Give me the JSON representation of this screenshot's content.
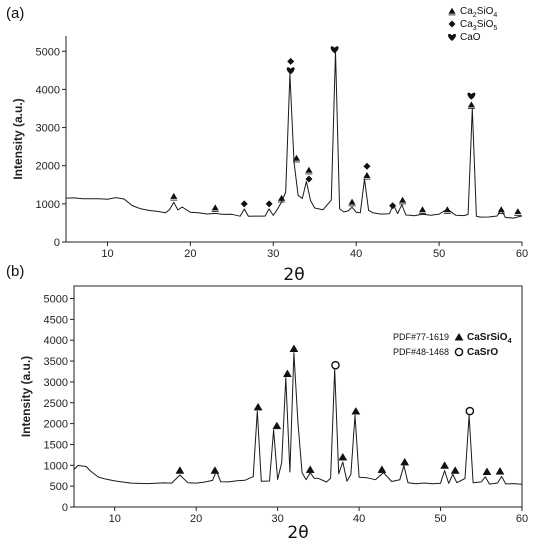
{
  "chart_data": [
    {
      "panel": "(a)",
      "type": "line",
      "xlabel": "2θ",
      "ylabel": "Intensity (a.u.)",
      "xlim": [
        5,
        60
      ],
      "ylim": [
        0,
        5400
      ],
      "xticks": [
        10,
        20,
        30,
        40,
        50,
        60
      ],
      "yticks": [
        0,
        1000,
        2000,
        3000,
        4000,
        5000
      ],
      "legend": {
        "placement": "top-right",
        "entries": [
          {
            "symbol": "triangle",
            "label": "Ca",
            "sub1": "2",
            "mid": "SiO",
            "sub2": "4"
          },
          {
            "symbol": "diamond",
            "label": "Ca",
            "sub1": "3",
            "mid": "SiO",
            "sub2": "5"
          },
          {
            "symbol": "heart",
            "label": "CaO",
            "sub1": "",
            "mid": "",
            "sub2": ""
          }
        ]
      },
      "series": [
        {
          "x": [
            5,
            6,
            7,
            8,
            9,
            10,
            11,
            12,
            13,
            14,
            15,
            16,
            17,
            17.5,
            18,
            18.5,
            19,
            20,
            21,
            22,
            23,
            24,
            25,
            26,
            26.5,
            27,
            28,
            29,
            29.5,
            30,
            30.5,
            31,
            31.5,
            32,
            32.5,
            33,
            33.5,
            34,
            34.5,
            35,
            36,
            37,
            37.5,
            38,
            38.5,
            39,
            39.5,
            40,
            40.5,
            41,
            41.5,
            42,
            43,
            44,
            44.5,
            45,
            45.5,
            46,
            46.5,
            47,
            48,
            49,
            50,
            51,
            52,
            53,
            53.5,
            54,
            54.5,
            55,
            56,
            57,
            57.5,
            58,
            59,
            60
          ],
          "y": [
            1150,
            1120,
            1130,
            1110,
            1120,
            1100,
            1140,
            1120,
            980,
            890,
            830,
            810,
            800,
            850,
            1050,
            820,
            880,
            760,
            740,
            720,
            720,
            700,
            700,
            700,
            900,
            700,
            700,
            720,
            900,
            720,
            820,
            1020,
            1300,
            4400,
            2100,
            1200,
            1100,
            1550,
            1100,
            900,
            860,
            1100,
            5000,
            900,
            800,
            780,
            900,
            760,
            760,
            1650,
            820,
            760,
            740,
            760,
            1000,
            750,
            1000,
            740,
            730,
            720,
            720,
            700,
            700,
            860,
            700,
            690,
            700,
            3500,
            700,
            680,
            680,
            700,
            880,
            680,
            660,
            660
          ]
        }
      ],
      "markers": [
        {
          "x": 18,
          "y": 1200,
          "symbols": [
            "triangle"
          ]
        },
        {
          "x": 23,
          "y": 900,
          "symbols": [
            "triangle"
          ]
        },
        {
          "x": 26.5,
          "y": 1000,
          "symbols": [
            "diamond"
          ]
        },
        {
          "x": 29.5,
          "y": 1000,
          "symbols": [
            "diamond"
          ]
        },
        {
          "x": 31,
          "y": 1150,
          "symbols": [
            "triangle"
          ]
        },
        {
          "x": 32.1,
          "y": 4500,
          "symbols": [
            "heart",
            "diamond"
          ]
        },
        {
          "x": 32.8,
          "y": 2200,
          "symbols": [
            "triangle"
          ]
        },
        {
          "x": 34.3,
          "y": 1650,
          "symbols": [
            "diamond",
            "triangle"
          ]
        },
        {
          "x": 37.4,
          "y": 5050,
          "symbols": [
            "heart"
          ]
        },
        {
          "x": 39.5,
          "y": 1050,
          "symbols": [
            "triangle"
          ]
        },
        {
          "x": 41.3,
          "y": 1750,
          "symbols": [
            "triangle",
            "diamond"
          ]
        },
        {
          "x": 44.4,
          "y": 950,
          "symbols": [
            "diamond"
          ]
        },
        {
          "x": 45.6,
          "y": 1100,
          "symbols": [
            "triangle"
          ]
        },
        {
          "x": 48,
          "y": 850,
          "symbols": [
            "triangle"
          ]
        },
        {
          "x": 51,
          "y": 850,
          "symbols": [
            "triangle"
          ]
        },
        {
          "x": 53.9,
          "y": 3600,
          "symbols": [
            "triangle",
            "heart"
          ]
        },
        {
          "x": 57.5,
          "y": 850,
          "symbols": [
            "triangle"
          ]
        },
        {
          "x": 59.5,
          "y": 800,
          "symbols": [
            "triangle"
          ]
        }
      ]
    },
    {
      "panel": "(b)",
      "type": "line",
      "xlabel": "2θ",
      "ylabel": "Intensity (a.u.)",
      "xlim": [
        5,
        60
      ],
      "ylim": [
        0,
        5300
      ],
      "xticks": [
        10,
        20,
        30,
        40,
        50,
        60
      ],
      "yticks": [
        0,
        500,
        1000,
        1500,
        2000,
        2500,
        3000,
        3500,
        4000,
        4500,
        5000
      ],
      "legend": {
        "placement": "top-right",
        "entries": [
          {
            "pdf": "PDF#77-1619",
            "symbol": "filled-triangle",
            "label": "CaSrSiO",
            "sub": "4"
          },
          {
            "pdf": "PDF#48-1468",
            "symbol": "open-circle",
            "label": "CaSrO",
            "sub": ""
          }
        ]
      },
      "series": [
        {
          "x": [
            5,
            5.5,
            6,
            6.5,
            7,
            8,
            9,
            10,
            12,
            14,
            16,
            17,
            18,
            19,
            20,
            21,
            22,
            22.5,
            23,
            24,
            25,
            26,
            27,
            27.5,
            28,
            29,
            29.5,
            30,
            30.5,
            31,
            31.5,
            32,
            32.5,
            33,
            33.5,
            34,
            34.5,
            35,
            36,
            36.5,
            37,
            37.5,
            38,
            38.5,
            39,
            39.5,
            40,
            41,
            42,
            43,
            44,
            45,
            45.5,
            46,
            47,
            48,
            49,
            50,
            50.5,
            51,
            51.5,
            52,
            53,
            53.5,
            54,
            55,
            55.5,
            56,
            57,
            57.5,
            58,
            59,
            60
          ],
          "y": [
            900,
            960,
            980,
            950,
            850,
            700,
            640,
            620,
            600,
            580,
            580,
            580,
            800,
            580,
            580,
            580,
            600,
            850,
            580,
            590,
            600,
            620,
            700,
            2300,
            650,
            650,
            1850,
            700,
            1100,
            3100,
            800,
            3700,
            2000,
            800,
            650,
            800,
            650,
            650,
            620,
            700,
            3300,
            800,
            1100,
            650,
            800,
            2200,
            700,
            680,
            650,
            820,
            600,
            650,
            1000,
            600,
            580,
            580,
            580,
            600,
            900,
            600,
            780,
            580,
            650,
            2200,
            580,
            600,
            700,
            580,
            600,
            760,
            580,
            580,
            580
          ]
        }
      ],
      "markers": [
        {
          "x": 18,
          "y": 880,
          "symbol": "filled-triangle"
        },
        {
          "x": 22.3,
          "y": 880,
          "symbol": "filled-triangle"
        },
        {
          "x": 27.6,
          "y": 2400,
          "symbol": "filled-triangle"
        },
        {
          "x": 29.9,
          "y": 1950,
          "symbols": "filled-triangle",
          "symbol": "filled-triangle"
        },
        {
          "x": 31.2,
          "y": 3200,
          "symbol": "filled-triangle"
        },
        {
          "x": 32,
          "y": 3800,
          "symbol": "filled-triangle"
        },
        {
          "x": 34,
          "y": 900,
          "symbol": "filled-triangle"
        },
        {
          "x": 37.1,
          "y": 3400,
          "symbol": "open-circle"
        },
        {
          "x": 38,
          "y": 1200,
          "symbol": "filled-triangle"
        },
        {
          "x": 39.6,
          "y": 2300,
          "symbol": "filled-triangle"
        },
        {
          "x": 42.8,
          "y": 900,
          "symbol": "filled-triangle"
        },
        {
          "x": 45.6,
          "y": 1080,
          "symbol": "filled-triangle"
        },
        {
          "x": 50.5,
          "y": 1000,
          "symbol": "filled-triangle"
        },
        {
          "x": 51.8,
          "y": 880,
          "symbol": "filled-triangle"
        },
        {
          "x": 53.6,
          "y": 2300,
          "symbol": "open-circle"
        },
        {
          "x": 55.7,
          "y": 850,
          "symbol": "filled-triangle"
        },
        {
          "x": 57.3,
          "y": 860,
          "symbol": "filled-triangle"
        }
      ]
    }
  ]
}
